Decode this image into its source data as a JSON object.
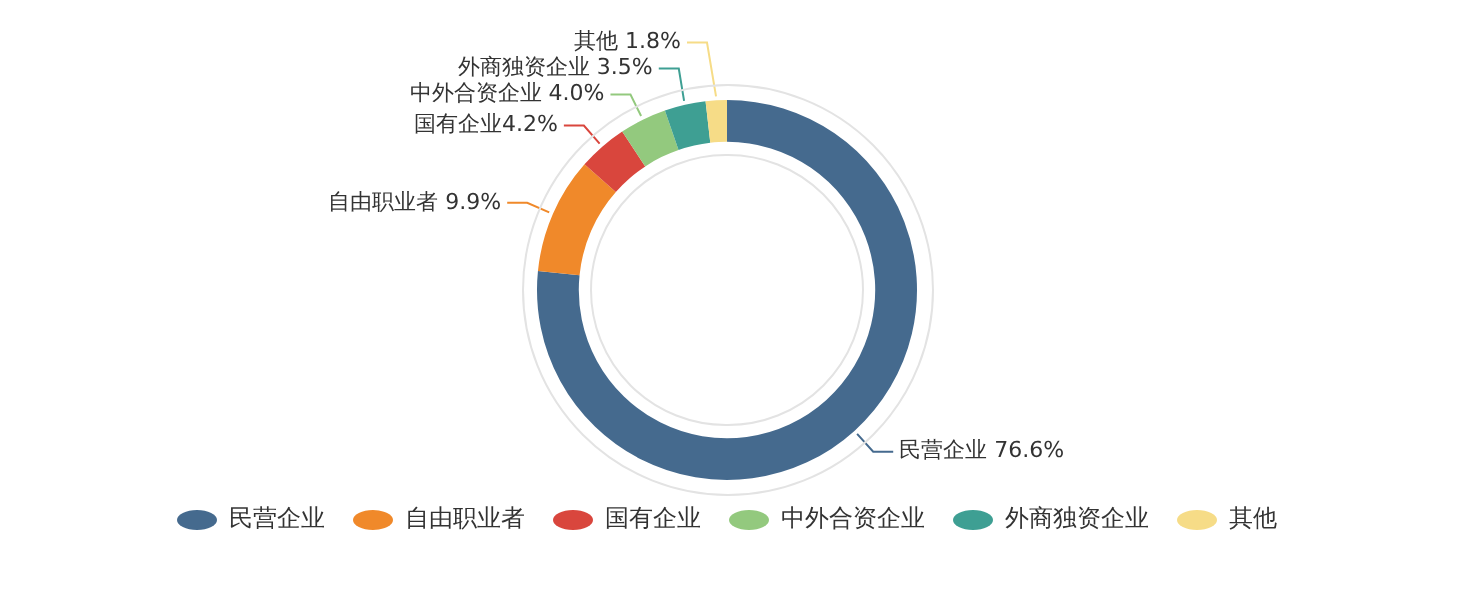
{
  "chart_data": {
    "type": "donut",
    "categories": [
      "民营企业",
      "自由职业者",
      "国有企业",
      "中外合资企业",
      "外商独资企业",
      "其他"
    ],
    "values": [
      76.6,
      9.9,
      4.2,
      4.0,
      3.5,
      1.8
    ],
    "colors": [
      "#456a8e",
      "#f0892a",
      "#d9463d",
      "#93c97e",
      "#3e9f93",
      "#f6dc87"
    ],
    "value_labels": [
      "民营企业 76.6%",
      "自由职业者 9.9%",
      "国有企业4.2%",
      "中外合资企业 4.0%",
      "外商独资企业 3.5%",
      "其他 1.8%"
    ],
    "legend": "bottom"
  }
}
